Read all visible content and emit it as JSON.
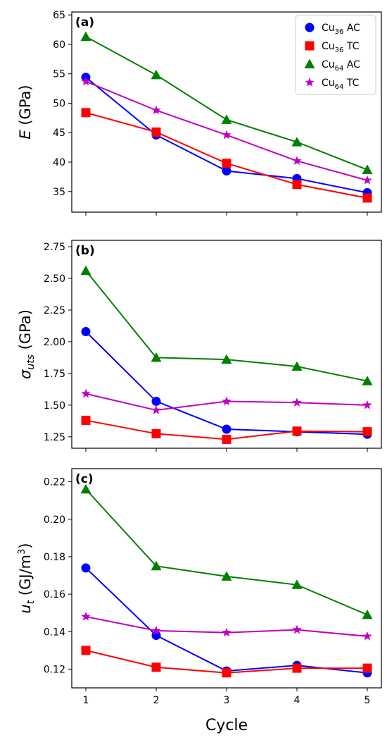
{
  "chart_data": [
    {
      "type": "line",
      "panel_label": "(a)",
      "ylabel": "E (GPa)",
      "xlabel": "",
      "x": [
        1,
        2,
        3,
        4,
        5
      ],
      "xlim": [
        0.8,
        5.2
      ],
      "ylim": [
        31.5,
        65.5
      ],
      "yticks": [
        35,
        40,
        45,
        50,
        55,
        60,
        65
      ],
      "legend_position": "top-right",
      "series": [
        {
          "name": "Cu36 AC",
          "values": [
            54.4,
            44.6,
            38.5,
            37.2,
            34.8
          ]
        },
        {
          "name": "Cu36 TC",
          "values": [
            48.4,
            45.1,
            39.8,
            36.2,
            33.9
          ]
        },
        {
          "name": "Cu64 AC",
          "values": [
            61.3,
            54.8,
            47.2,
            43.4,
            38.7
          ]
        },
        {
          "name": "Cu64 TC",
          "values": [
            53.7,
            48.8,
            44.6,
            40.2,
            36.9
          ]
        }
      ]
    },
    {
      "type": "line",
      "panel_label": "(b)",
      "ylabel": "σuts (GPa)",
      "xlabel": "",
      "x": [
        1,
        2,
        3,
        4,
        5
      ],
      "xlim": [
        0.8,
        5.2
      ],
      "ylim": [
        1.16,
        2.8
      ],
      "yticks": [
        1.25,
        1.5,
        1.75,
        2.0,
        2.25,
        2.5,
        2.75
      ],
      "series": [
        {
          "name": "Cu36 AC",
          "values": [
            2.08,
            1.53,
            1.31,
            1.29,
            1.27
          ]
        },
        {
          "name": "Cu36 TC",
          "values": [
            1.38,
            1.275,
            1.23,
            1.295,
            1.29
          ]
        },
        {
          "name": "Cu64 AC",
          "values": [
            2.56,
            1.875,
            1.86,
            1.805,
            1.69
          ]
        },
        {
          "name": "Cu64 TC",
          "values": [
            1.59,
            1.46,
            1.53,
            1.52,
            1.5
          ]
        }
      ]
    },
    {
      "type": "line",
      "panel_label": "(c)",
      "ylabel": "ut (GJ/m3)",
      "xlabel": "Cycle",
      "x": [
        1,
        2,
        3,
        4,
        5
      ],
      "xlim": [
        0.8,
        5.2
      ],
      "ylim": [
        0.11,
        0.227
      ],
      "yticks": [
        0.12,
        0.14,
        0.16,
        0.18,
        0.2,
        0.22
      ],
      "series": [
        {
          "name": "Cu36 AC",
          "values": [
            0.174,
            0.138,
            0.119,
            0.122,
            0.118
          ]
        },
        {
          "name": "Cu36 TC",
          "values": [
            0.13,
            0.121,
            0.118,
            0.1205,
            0.1205
          ]
        },
        {
          "name": "Cu64 AC",
          "values": [
            0.216,
            0.175,
            0.1695,
            0.165,
            0.149
          ]
        },
        {
          "name": "Cu64 TC",
          "values": [
            0.148,
            0.1405,
            0.1395,
            0.141,
            0.1375
          ]
        }
      ]
    }
  ],
  "legend": [
    {
      "base": "Cu",
      "sub": "36",
      "suffix": " AC"
    },
    {
      "base": "Cu",
      "sub": "36",
      "suffix": " TC"
    },
    {
      "base": "Cu",
      "sub": "64",
      "suffix": " AC"
    },
    {
      "base": "Cu",
      "sub": "64",
      "suffix": " TC"
    }
  ],
  "series_styles": [
    {
      "color": "#0000ff",
      "marker": "circle"
    },
    {
      "color": "#ff0000",
      "marker": "square"
    },
    {
      "color": "#008000",
      "marker": "triangle"
    },
    {
      "color": "#bf00bf",
      "marker": "star"
    }
  ],
  "xticks": [
    1,
    2,
    3,
    4,
    5
  ],
  "xlabel": "Cycle"
}
